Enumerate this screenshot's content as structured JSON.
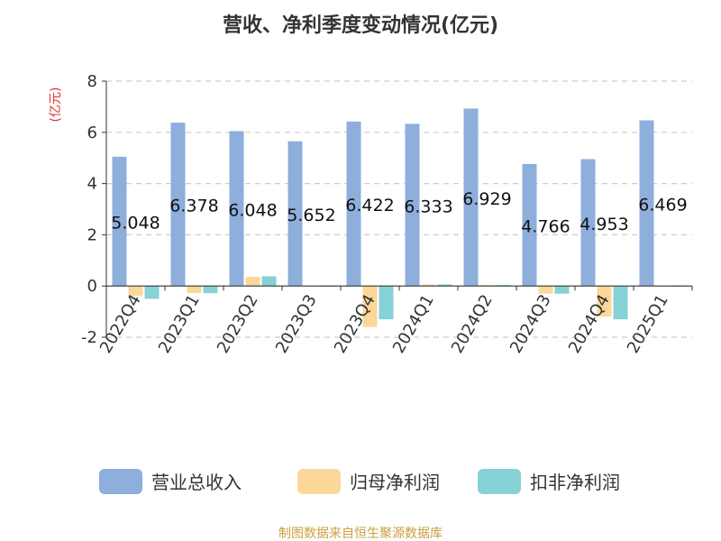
{
  "chart_data": {
    "type": "bar",
    "title": "营收、净利季度变动情况(亿元)",
    "unit": "(亿元)",
    "categories": [
      "2022Q4",
      "2023Q1",
      "2023Q2",
      "2023Q3",
      "2023Q4",
      "2024Q1",
      "2024Q2",
      "2024Q3",
      "2024Q4",
      "2025Q1"
    ],
    "series": [
      {
        "name": "营业总收入",
        "color": "#8eaedc",
        "values": [
          5.048,
          6.378,
          6.048,
          5.652,
          6.422,
          6.333,
          6.929,
          4.766,
          4.953,
          6.469
        ],
        "labels": [
          "5.048",
          "6.378",
          "6.048",
          "5.652",
          "6.422",
          "6.333",
          "6.929",
          "4.766",
          "4.953",
          "6.469"
        ]
      },
      {
        "name": "归母净利润",
        "color": "#fcd79a",
        "values": [
          -0.38,
          -0.27,
          0.36,
          0.02,
          -1.6,
          0.06,
          0.04,
          -0.3,
          -1.2,
          0.02
        ]
      },
      {
        "name": "扣非净利润",
        "color": "#86d2d6",
        "values": [
          -0.5,
          -0.28,
          0.38,
          0.02,
          -1.3,
          0.06,
          0.04,
          -0.3,
          -1.3,
          0.02
        ]
      }
    ],
    "yticks": [
      "8",
      "6",
      "4",
      "2",
      "0",
      "-2"
    ],
    "ylim": [
      -2,
      8
    ],
    "grid": true,
    "legend_position": "bottom",
    "source": "制图数据来自恒生聚源数据库"
  }
}
